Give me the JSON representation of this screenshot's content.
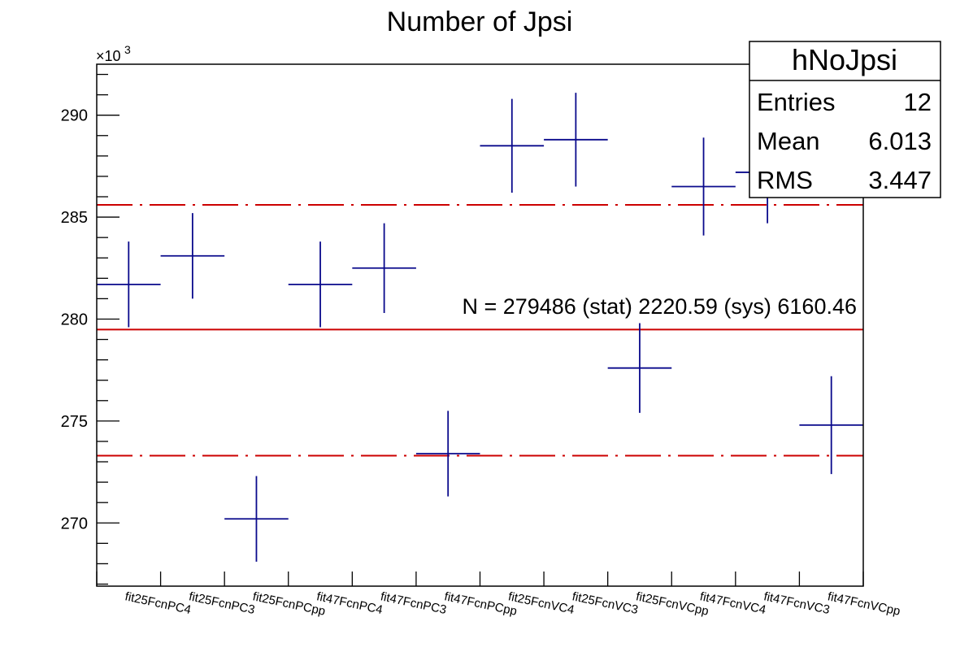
{
  "chart_data": {
    "type": "scatter",
    "title": "Number of Jpsi",
    "xlabel": "",
    "ylabel": "",
    "y_exponent_label": "×10",
    "y_exponent_power": "3",
    "ylim": [
      266.9,
      292.5
    ],
    "y_ticks": [
      "270",
      "275",
      "280",
      "285",
      "290"
    ],
    "categories": [
      "fit25FcnPC4",
      "fit25FcnPC3",
      "fit25FcnPCpp",
      "fit47FcnPC4",
      "fit47FcnPC3",
      "fit47FcnPCpp",
      "fit25FcnVC4",
      "fit25FcnVC3",
      "fit25FcnVCpp",
      "fit47FcnVC4",
      "fit47FcnVC3",
      "fit47FcnVCpp"
    ],
    "series": [
      {
        "values": [
          281.7,
          283.1,
          270.2,
          281.7,
          282.5,
          273.4,
          288.5,
          288.8,
          277.6,
          286.5,
          287.2,
          274.8
        ],
        "errors": [
          2.1,
          2.1,
          2.1,
          2.1,
          2.2,
          2.1,
          2.3,
          2.3,
          2.2,
          2.4,
          2.5,
          2.4
        ],
        "color": "#0a0a8c"
      }
    ],
    "mean_line": 279.486,
    "band_lines": [
      273.3,
      285.6
    ],
    "line_color": "#cc0000",
    "annotation": "N = 279486 (stat) 2220.59 (sys) 6160.46",
    "grid": false,
    "stats_box": {
      "title": "hNoJpsi",
      "placement": "top-right",
      "rows": [
        {
          "label": "Entries",
          "value": "12"
        },
        {
          "label": "Mean",
          "value": "6.013"
        },
        {
          "label": "RMS",
          "value": "3.447"
        }
      ]
    }
  }
}
